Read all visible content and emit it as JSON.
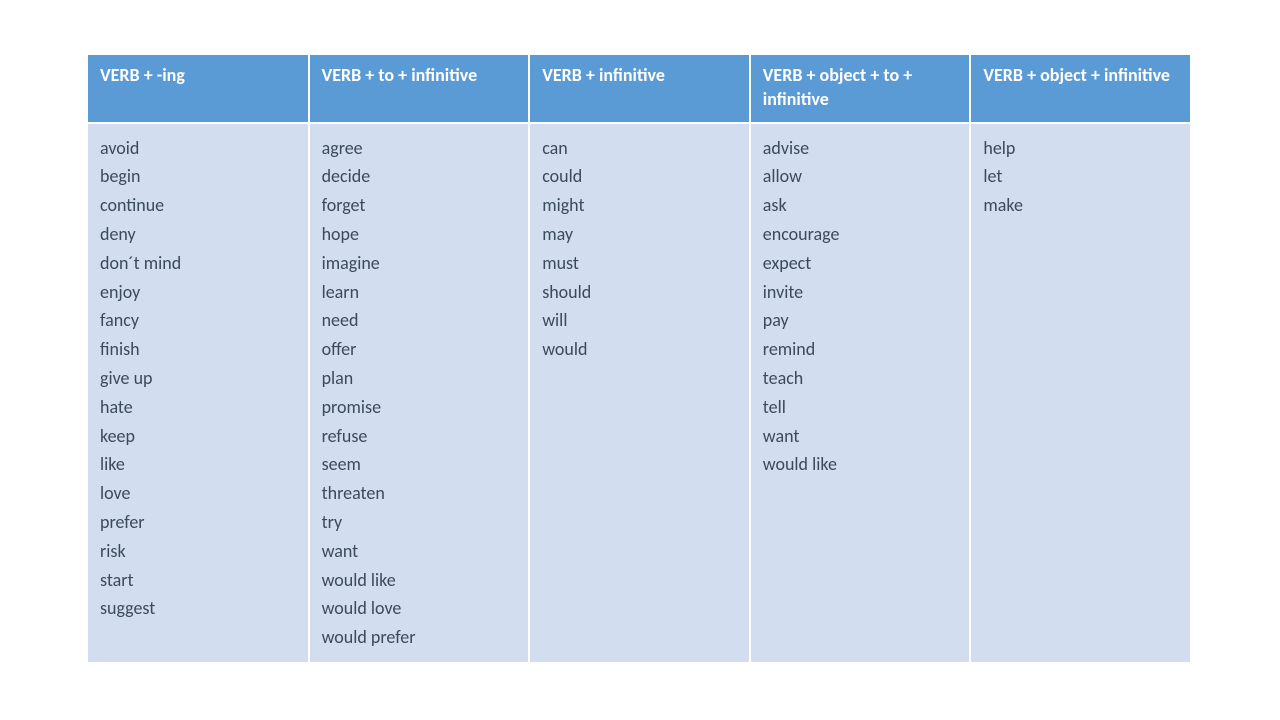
{
  "table": {
    "header_bg": "#5b9bd5",
    "header_fg": "#ffffff",
    "body_bg": "#d2deef",
    "body_fg": "#3b4a59",
    "border_color": "#ffffff",
    "columns": [
      {
        "header": "VERB + -ing",
        "items": [
          "avoid",
          "begin",
          "continue",
          "deny",
          "don´t mind",
          "enjoy",
          "fancy",
          "finish",
          "give up",
          "hate",
          "keep",
          "like",
          "love",
          "prefer",
          "risk",
          "start",
          "suggest"
        ]
      },
      {
        "header": "VERB + to + infinitive",
        "items": [
          "agree",
          "decide",
          "forget",
          "hope",
          "imagine",
          "learn",
          "need",
          "offer",
          "plan",
          "promise",
          "refuse",
          "seem",
          "threaten",
          "try",
          "want",
          "would like",
          "would love",
          "would prefer"
        ]
      },
      {
        "header": "VERB + infinitive",
        "items": [
          "can",
          "could",
          "might",
          "may",
          "must",
          "should",
          "will",
          "would"
        ]
      },
      {
        "header": "VERB + object + to + infinitive",
        "items": [
          "advise",
          "allow",
          "ask",
          "encourage",
          "expect",
          "invite",
          "pay",
          "remind",
          "teach",
          "tell",
          "want",
          "would like"
        ]
      },
      {
        "header": "VERB + object + infinitive",
        "items": [
          "help",
          "let",
          "make"
        ]
      }
    ]
  }
}
